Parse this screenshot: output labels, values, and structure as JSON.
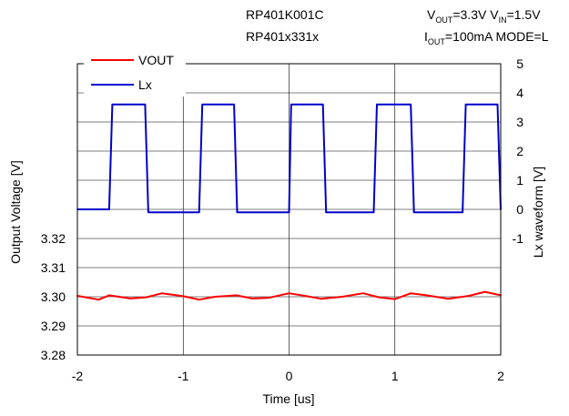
{
  "header": {
    "title_line1": "RP401K001C",
    "title_line2": "RP401x331x",
    "cond": {
      "vout_sym": "V",
      "vout_sub": "OUT",
      "vout_val": "=3.3V",
      "vin_sym": "V",
      "vin_sub": "IN",
      "vin_val": "=1.5V",
      "iout_sym": "I",
      "iout_sub": "OUT",
      "iout_rest": "=100mA  MODE=L"
    }
  },
  "chart_data": {
    "type": "line",
    "xlabel": "Time [us]",
    "ylabel_left": "Output Voltage [V]",
    "ylabel_right": "Lx waveform [V]",
    "xlim": [
      -2,
      2
    ],
    "x_ticks": [
      "-2",
      "-1",
      "0",
      "1",
      "2"
    ],
    "ylim_left": [
      3.28,
      3.38
    ],
    "y_ticks_left": [
      "3.28",
      "3.29",
      "3.30",
      "3.31",
      "3.32"
    ],
    "ylim_right": [
      -5,
      5
    ],
    "y_ticks_right": [
      "-1",
      "0",
      "1",
      "2",
      "3",
      "4",
      "5"
    ],
    "grid": true,
    "legend_position": "top-left",
    "series": [
      {
        "name": "VOUT",
        "axis": "left",
        "color": "#ff0000",
        "x": [
          -2.0,
          -1.8,
          -1.7,
          -1.5,
          -1.35,
          -1.2,
          -1.0,
          -0.85,
          -0.7,
          -0.5,
          -0.35,
          -0.2,
          0.0,
          0.15,
          0.3,
          0.5,
          0.7,
          0.85,
          1.0,
          1.15,
          1.3,
          1.5,
          1.7,
          1.85,
          2.0
        ],
        "values": [
          3.3003,
          3.299,
          3.3005,
          3.2994,
          3.2998,
          3.3012,
          3.3002,
          3.299,
          3.3,
          3.3005,
          3.2994,
          3.2996,
          3.3012,
          3.3003,
          3.2993,
          3.3,
          3.3012,
          3.2998,
          3.2992,
          3.3012,
          3.3005,
          3.2993,
          3.3003,
          3.3017,
          3.3005
        ]
      },
      {
        "name": "Lx",
        "axis": "right",
        "color": "#0000cc",
        "x": [
          -2.0,
          -1.7,
          -1.67,
          -1.36,
          -1.33,
          -0.85,
          -0.82,
          -0.52,
          -0.49,
          0.0,
          0.02,
          0.32,
          0.35,
          0.8,
          0.83,
          1.15,
          1.18,
          1.64,
          1.67,
          1.97,
          2.0
        ],
        "values": [
          0.0,
          0.0,
          3.6,
          3.6,
          -0.1,
          -0.1,
          3.6,
          3.6,
          -0.1,
          -0.1,
          3.6,
          3.6,
          -0.1,
          -0.1,
          3.6,
          3.6,
          -0.1,
          -0.1,
          3.6,
          3.6,
          0.0
        ]
      }
    ]
  }
}
